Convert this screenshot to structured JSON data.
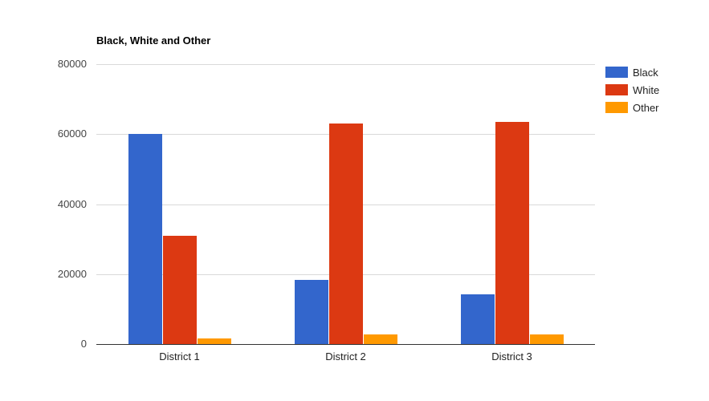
{
  "chart_data": {
    "type": "bar",
    "title": "Black, White and Other",
    "xlabel": "",
    "ylabel": "",
    "categories": [
      "District 1",
      "District 2",
      "District 3"
    ],
    "series": [
      {
        "name": "Black",
        "color": "#3366cc",
        "values": [
          60000,
          18300,
          14200
        ]
      },
      {
        "name": "White",
        "color": "#dc3912",
        "values": [
          31000,
          63000,
          63500
        ]
      },
      {
        "name": "Other",
        "color": "#ff9900",
        "values": [
          1600,
          2700,
          2700
        ]
      }
    ],
    "ylim": [
      0,
      80000
    ],
    "yticks": [
      "0",
      "20000",
      "40000",
      "60000",
      "80000"
    ],
    "grid": true,
    "legend_position": "right"
  }
}
